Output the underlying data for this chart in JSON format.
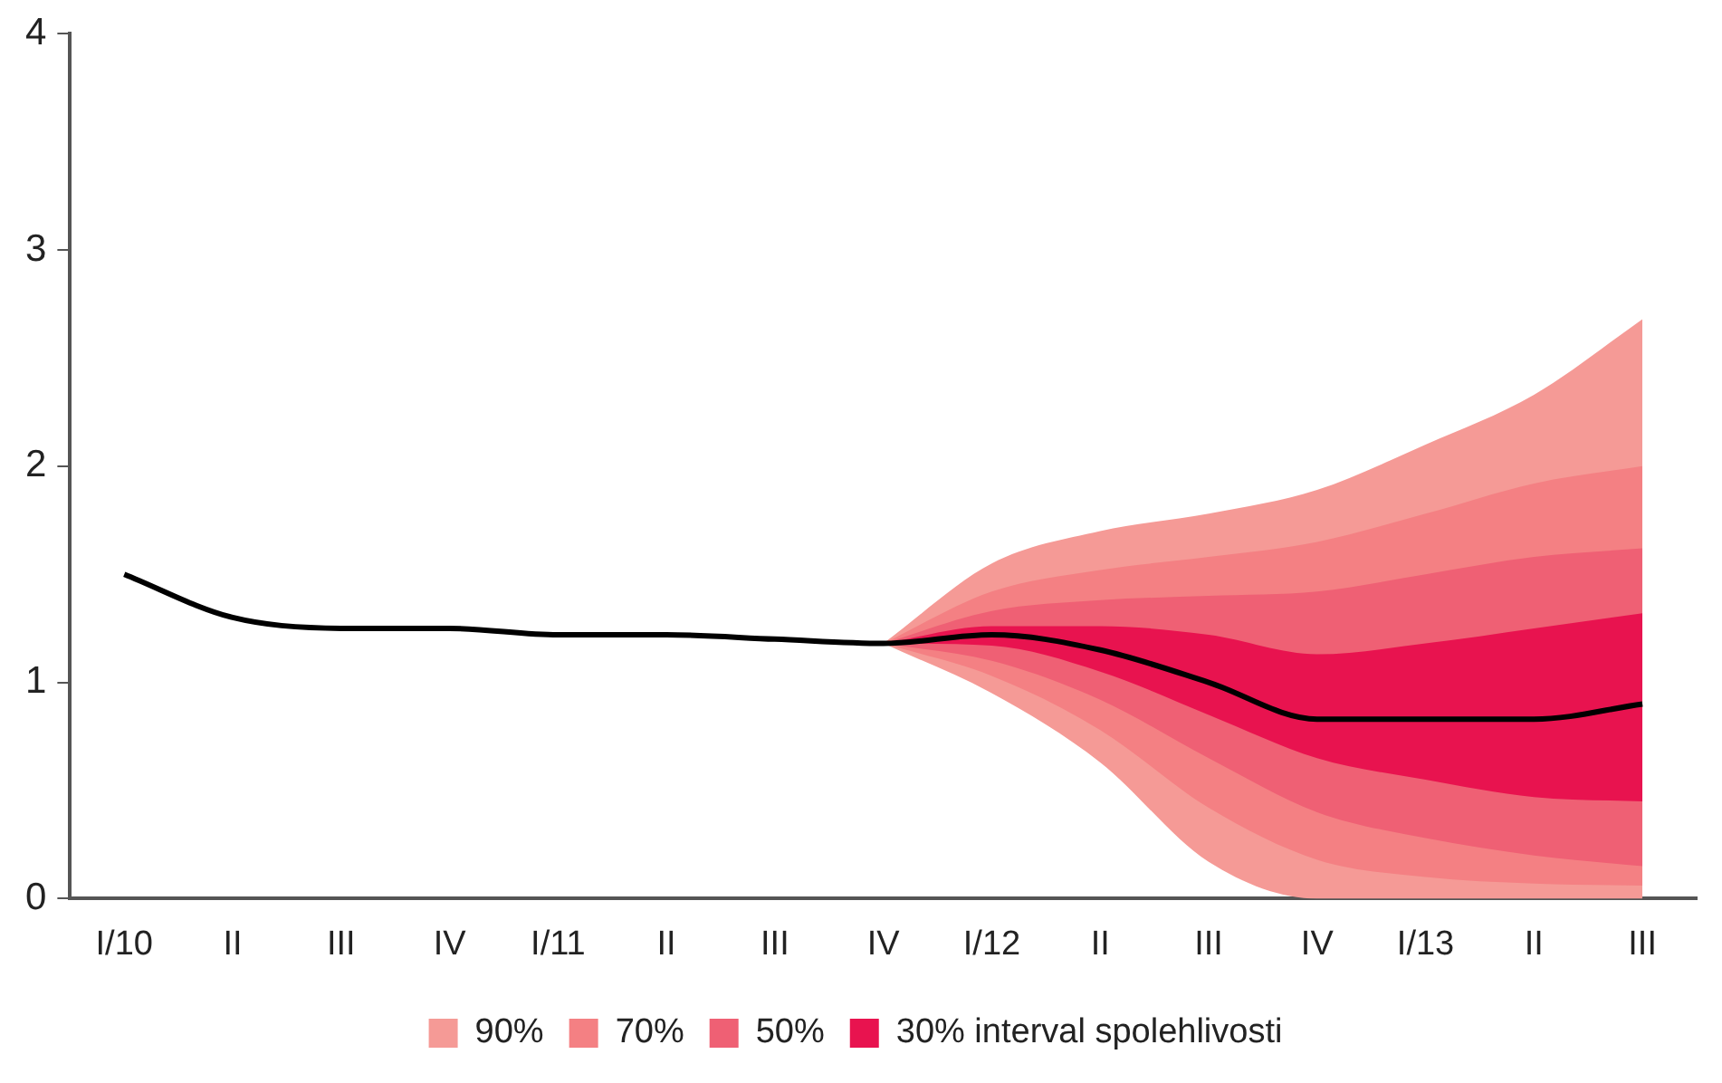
{
  "chart_data": {
    "type": "line",
    "categories": [
      "I/10",
      "II",
      "III",
      "IV",
      "I/11",
      "II",
      "III",
      "IV",
      "I/12",
      "II",
      "III",
      "IV",
      "I/13",
      "II",
      "III"
    ],
    "ylim": [
      0,
      4
    ],
    "yticks": [
      0,
      1,
      2,
      3,
      4
    ],
    "grid": false,
    "legend": "bottom",
    "marker": "none",
    "line_style": "solid",
    "series": [
      {
        "type": "line",
        "name": "90%",
        "color": "#f59a96",
        "values": [
          null,
          null,
          null,
          null,
          null,
          null,
          null,
          null,
          null,
          null,
          null,
          null,
          null,
          null,
          null
        ],
        "lower": [
          null,
          null,
          null,
          null,
          null,
          null,
          null,
          1.18,
          0.95,
          0.63,
          0.17,
          0,
          0,
          0,
          0
        ],
        "upper": [
          null,
          null,
          null,
          null,
          null,
          null,
          null,
          1.18,
          1.55,
          1.7,
          1.78,
          1.89,
          2.1,
          2.33,
          2.68
        ]
      },
      {
        "type": "line",
        "name": "70%",
        "color": "#f48083",
        "values": [
          null,
          null,
          null,
          null,
          null,
          null,
          null,
          null,
          null,
          null,
          null,
          null,
          null,
          null,
          null
        ],
        "lower": [
          null,
          null,
          null,
          null,
          null,
          null,
          null,
          1.18,
          1.03,
          0.78,
          0.42,
          0.18,
          0.1,
          0.07,
          0.06
        ],
        "upper": [
          null,
          null,
          null,
          null,
          null,
          null,
          null,
          1.18,
          1.42,
          1.52,
          1.58,
          1.65,
          1.78,
          1.92,
          2.0
        ]
      },
      {
        "type": "line",
        "name": "50%",
        "color": "#ef6074",
        "values": [
          null,
          null,
          null,
          null,
          null,
          null,
          null,
          null,
          null,
          null,
          null,
          null,
          null,
          null,
          null
        ],
        "lower": [
          null,
          null,
          null,
          null,
          null,
          null,
          null,
          1.18,
          1.1,
          0.92,
          0.65,
          0.4,
          0.28,
          0.2,
          0.15
        ],
        "upper": [
          null,
          null,
          null,
          null,
          null,
          null,
          null,
          1.18,
          1.33,
          1.38,
          1.4,
          1.42,
          1.5,
          1.58,
          1.62
        ]
      },
      {
        "type": "line",
        "name": "30% interval spolehlivosti",
        "color": "#e8134f",
        "values": [
          null,
          null,
          null,
          null,
          null,
          null,
          null,
          null,
          null,
          null,
          null,
          null,
          null,
          null,
          null
        ],
        "lower": [
          null,
          null,
          null,
          null,
          null,
          null,
          null,
          1.18,
          1.17,
          1.05,
          0.85,
          0.65,
          0.55,
          0.47,
          0.45
        ],
        "upper": [
          null,
          null,
          null,
          null,
          null,
          null,
          null,
          1.18,
          1.26,
          1.26,
          1.22,
          1.13,
          1.18,
          1.25,
          1.32
        ]
      },
      {
        "type": "line",
        "color": "#000000",
        "values": [
          1.5,
          1.3,
          1.25,
          1.25,
          1.22,
          1.22,
          1.2,
          1.18,
          1.22,
          1.15,
          1.0,
          0.83,
          0.83,
          0.83,
          0.9
        ]
      }
    ]
  }
}
